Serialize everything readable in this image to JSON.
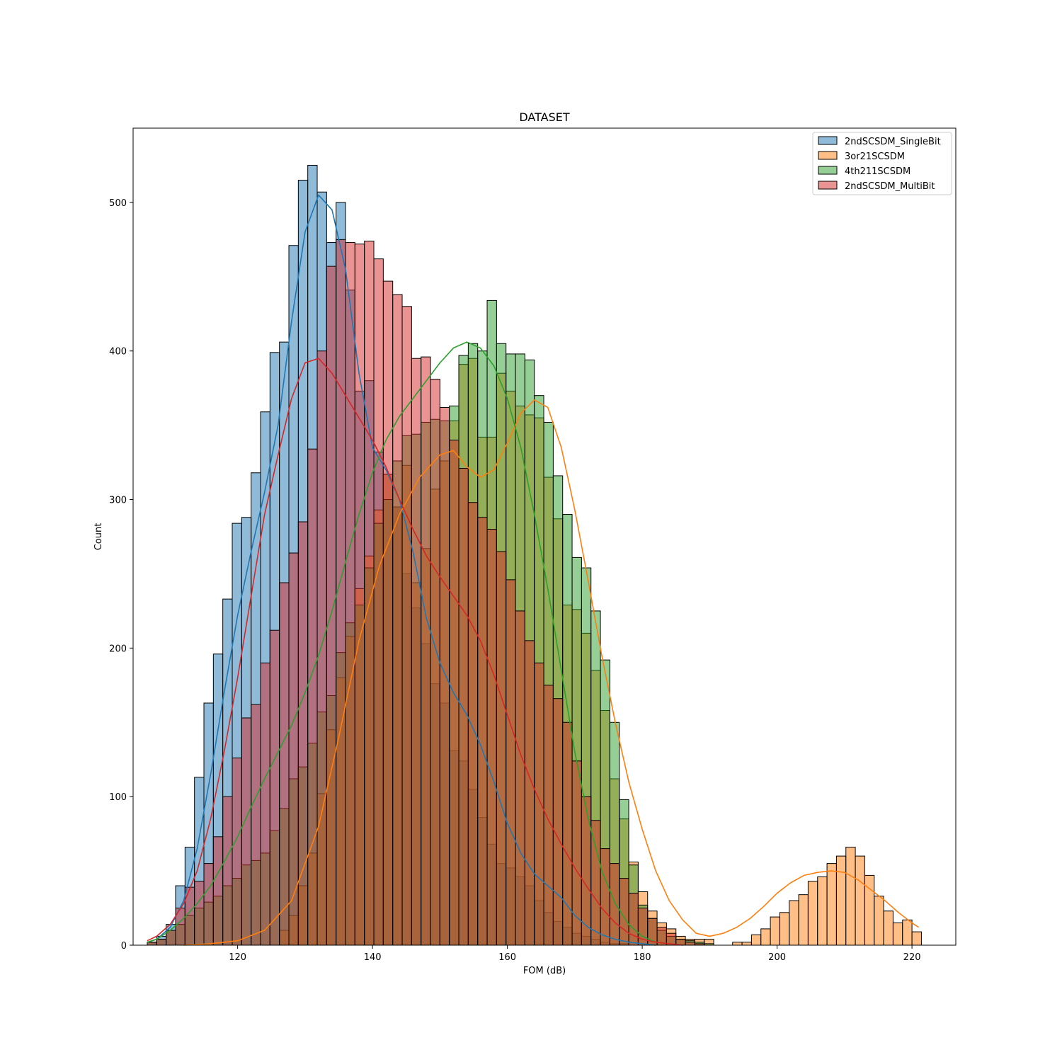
{
  "chart_data": {
    "type": "histogram",
    "title": "DATASET",
    "xlabel": "FOM (dB)",
    "ylabel": "Count",
    "xlim": [
      104.5,
      226.5
    ],
    "ylim": [
      0,
      550
    ],
    "xticks": [
      120,
      140,
      160,
      180,
      200,
      220
    ],
    "yticks": [
      0,
      100,
      200,
      300,
      400,
      500
    ],
    "grid": false,
    "legend_position": "top-right",
    "bin_start": 106.6,
    "bin_width": 1.4,
    "series": [
      {
        "name": "2ndSCSDM_SingleBit",
        "color": "#1f77b4",
        "counts": [
          2,
          6,
          14,
          40,
          66,
          113,
          163,
          196,
          233,
          284,
          288,
          318,
          359,
          399,
          406,
          471,
          515,
          525,
          507,
          473,
          500,
          441,
          373,
          380,
          332,
          317,
          295,
          250,
          227,
          203,
          176,
          163,
          131,
          124,
          105,
          86,
          68,
          55,
          52,
          46,
          40,
          30,
          22,
          16,
          12,
          8,
          6,
          4,
          2,
          1,
          1
        ],
        "kde": [
          [
            106.6,
            2
          ],
          [
            108,
            4
          ],
          [
            110,
            12
          ],
          [
            112,
            30
          ],
          [
            114,
            65
          ],
          [
            116,
            115
          ],
          [
            118,
            170
          ],
          [
            120,
            222
          ],
          [
            122,
            265
          ],
          [
            124,
            305
          ],
          [
            126,
            350
          ],
          [
            128,
            420
          ],
          [
            130,
            480
          ],
          [
            132,
            505
          ],
          [
            134,
            495
          ],
          [
            136,
            455
          ],
          [
            138,
            385
          ],
          [
            140,
            335
          ],
          [
            142,
            320
          ],
          [
            144,
            300
          ],
          [
            146,
            265
          ],
          [
            148,
            220
          ],
          [
            150,
            190
          ],
          [
            152,
            170
          ],
          [
            154,
            155
          ],
          [
            156,
            135
          ],
          [
            158,
            110
          ],
          [
            160,
            82
          ],
          [
            162,
            62
          ],
          [
            164,
            48
          ],
          [
            166,
            40
          ],
          [
            168,
            32
          ],
          [
            170,
            20
          ],
          [
            172,
            12
          ],
          [
            174,
            7
          ],
          [
            176,
            4
          ],
          [
            178,
            2
          ],
          [
            180,
            1
          ],
          [
            182,
            0
          ]
        ]
      },
      {
        "name": "3or21SCSDM",
        "color": "#ff7f0e",
        "counts": [
          0,
          0,
          0,
          0,
          0,
          0,
          0,
          0,
          0,
          0,
          0,
          0,
          0,
          0,
          10,
          20,
          40,
          62,
          102,
          145,
          180,
          208,
          240,
          262,
          293,
          317,
          295,
          323,
          244,
          267,
          307,
          326,
          353,
          391,
          395,
          342,
          342,
          385,
          373,
          363,
          357,
          355,
          315,
          287,
          229,
          226,
          210,
          185,
          158,
          112,
          85,
          56,
          36,
          23,
          15,
          11,
          6,
          4,
          4,
          4,
          0,
          0,
          2,
          2,
          7,
          11,
          19,
          22,
          30,
          34,
          43,
          46,
          55,
          60,
          66,
          60,
          47,
          33,
          23,
          15,
          17,
          9
        ],
        "kde": [
          [
            112,
            0
          ],
          [
            116,
            1
          ],
          [
            120,
            3
          ],
          [
            124,
            10
          ],
          [
            128,
            30
          ],
          [
            132,
            80
          ],
          [
            135,
            140
          ],
          [
            138,
            205
          ],
          [
            141,
            255
          ],
          [
            144,
            290
          ],
          [
            147,
            315
          ],
          [
            150,
            330
          ],
          [
            152,
            333
          ],
          [
            154,
            322
          ],
          [
            156,
            315
          ],
          [
            158,
            320
          ],
          [
            160,
            338
          ],
          [
            162,
            358
          ],
          [
            164,
            367
          ],
          [
            166,
            362
          ],
          [
            168,
            335
          ],
          [
            170,
            293
          ],
          [
            172,
            245
          ],
          [
            174,
            195
          ],
          [
            176,
            150
          ],
          [
            178,
            110
          ],
          [
            180,
            78
          ],
          [
            182,
            50
          ],
          [
            184,
            30
          ],
          [
            186,
            17
          ],
          [
            188,
            8
          ],
          [
            190,
            6
          ],
          [
            192,
            8
          ],
          [
            194,
            12
          ],
          [
            196,
            18
          ],
          [
            198,
            26
          ],
          [
            200,
            35
          ],
          [
            202,
            42
          ],
          [
            204,
            47
          ],
          [
            206,
            49
          ],
          [
            208,
            50
          ],
          [
            210,
            49
          ],
          [
            212,
            44
          ],
          [
            214,
            37
          ],
          [
            216,
            30
          ],
          [
            218,
            22
          ],
          [
            220,
            15
          ],
          [
            221,
            12
          ]
        ]
      },
      {
        "name": "4th211SCSDM",
        "color": "#2ca02c",
        "counts": [
          2,
          4,
          10,
          14,
          20,
          25,
          29,
          33,
          40,
          45,
          54,
          57,
          62,
          77,
          92,
          112,
          120,
          136,
          157,
          168,
          197,
          217,
          229,
          254,
          284,
          300,
          326,
          343,
          344,
          352,
          354,
          353,
          363,
          397,
          405,
          400,
          434,
          405,
          398,
          398,
          394,
          370,
          352,
          316,
          290,
          261,
          254,
          225,
          192,
          150,
          98,
          54,
          27,
          18,
          10,
          6,
          4,
          3,
          2,
          1
        ],
        "kde": [
          [
            106.6,
            2
          ],
          [
            108,
            4
          ],
          [
            110,
            10
          ],
          [
            112,
            18
          ],
          [
            114,
            28
          ],
          [
            116,
            40
          ],
          [
            118,
            56
          ],
          [
            120,
            73
          ],
          [
            122,
            93
          ],
          [
            124,
            112
          ],
          [
            126,
            130
          ],
          [
            128,
            148
          ],
          [
            130,
            170
          ],
          [
            132,
            195
          ],
          [
            134,
            225
          ],
          [
            136,
            258
          ],
          [
            138,
            290
          ],
          [
            140,
            318
          ],
          [
            142,
            340
          ],
          [
            144,
            356
          ],
          [
            146,
            368
          ],
          [
            148,
            380
          ],
          [
            150,
            392
          ],
          [
            152,
            402
          ],
          [
            154,
            406
          ],
          [
            156,
            402
          ],
          [
            158,
            390
          ],
          [
            160,
            368
          ],
          [
            162,
            335
          ],
          [
            164,
            290
          ],
          [
            166,
            240
          ],
          [
            168,
            185
          ],
          [
            170,
            130
          ],
          [
            172,
            85
          ],
          [
            174,
            50
          ],
          [
            176,
            28
          ],
          [
            178,
            14
          ],
          [
            180,
            6
          ],
          [
            182,
            2
          ],
          [
            184,
            1
          ]
        ]
      },
      {
        "name": "2ndSCSDM_MultiBit",
        "color": "#d62728",
        "counts": [
          2,
          4,
          10,
          25,
          39,
          43,
          55,
          73,
          100,
          126,
          153,
          162,
          190,
          212,
          244,
          264,
          285,
          334,
          400,
          457,
          475,
          473,
          472,
          474,
          462,
          447,
          438,
          430,
          395,
          396,
          381,
          362,
          340,
          321,
          298,
          288,
          280,
          265,
          246,
          225,
          205,
          190,
          175,
          166,
          150,
          124,
          100,
          84,
          65,
          55,
          45,
          35,
          25,
          18,
          12,
          8,
          4,
          2,
          1
        ],
        "kde": [
          [
            106.6,
            3
          ],
          [
            108,
            6
          ],
          [
            110,
            14
          ],
          [
            112,
            28
          ],
          [
            114,
            50
          ],
          [
            116,
            85
          ],
          [
            118,
            130
          ],
          [
            120,
            180
          ],
          [
            122,
            235
          ],
          [
            124,
            290
          ],
          [
            126,
            330
          ],
          [
            128,
            368
          ],
          [
            130,
            392
          ],
          [
            132,
            395
          ],
          [
            134,
            385
          ],
          [
            136,
            370
          ],
          [
            138,
            355
          ],
          [
            140,
            340
          ],
          [
            142,
            322
          ],
          [
            144,
            300
          ],
          [
            146,
            280
          ],
          [
            148,
            262
          ],
          [
            150,
            248
          ],
          [
            152,
            235
          ],
          [
            154,
            222
          ],
          [
            156,
            205
          ],
          [
            158,
            182
          ],
          [
            160,
            155
          ],
          [
            162,
            128
          ],
          [
            164,
            105
          ],
          [
            166,
            85
          ],
          [
            168,
            68
          ],
          [
            170,
            52
          ],
          [
            172,
            38
          ],
          [
            174,
            25
          ],
          [
            176,
            15
          ],
          [
            178,
            8
          ],
          [
            180,
            4
          ],
          [
            182,
            2
          ],
          [
            184,
            1
          ],
          [
            186,
            0
          ]
        ]
      }
    ]
  }
}
